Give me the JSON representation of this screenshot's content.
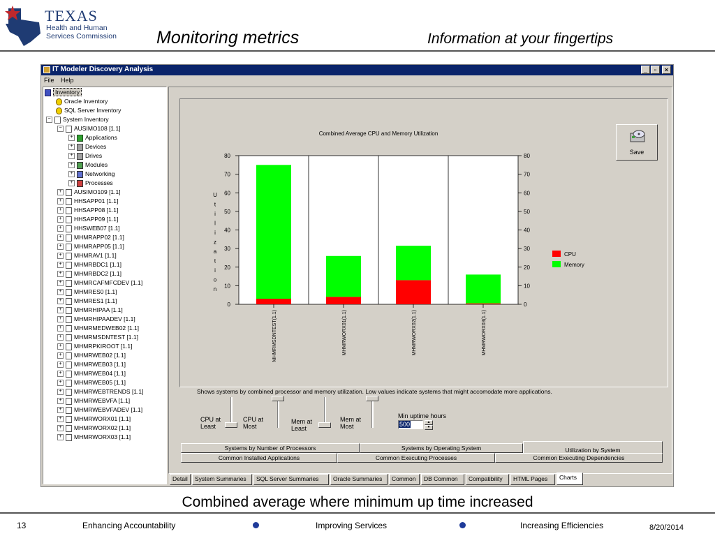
{
  "slide": {
    "title": "Monitoring metrics",
    "tagline": "Information at your fingertips",
    "logo": {
      "state": "TEXAS",
      "agency_line1": "Health and Human",
      "agency_line2": "Services Commission"
    },
    "caption": "Combined average where minimum up time increased",
    "footer": {
      "page": "13",
      "item1": "Enhancing Accountability",
      "item2": "Improving Services",
      "item3": "Increasing Efficiencies",
      "date": "8/20/2014"
    }
  },
  "window": {
    "title": "IT Modeler Discovery Analysis",
    "menu": [
      "File",
      "Help"
    ]
  },
  "tree": {
    "root": "Inventory",
    "oracle": "Oracle Inventory",
    "sqlserver": "SQL Server Inventory",
    "system": "System Inventory",
    "expanded_system": "AUSIMO108 [1.1]",
    "expanded_children": [
      "Applications",
      "Devices",
      "Drives",
      "Modules",
      "Networking",
      "Processes"
    ],
    "systems": [
      "AUSIMO109 [1.1]",
      "HHSAPP01 [1.1]",
      "HHSAPP08 [1.1]",
      "HHSAPP09 [1.1]",
      "HHSWEB07 [1.1]",
      "MHMRAPP02 [1.1]",
      "MHMRAPP05 [1.1]",
      "MHMRAV1 [1.1]",
      "MHMRBDC1 [1.1]",
      "MHMRBDC2 [1.1]",
      "MHMRCAFMFCDEV [1.1]",
      "MHMRES0 [1.1]",
      "MHMRES1 [1.1]",
      "MHMRHIPAA [1.1]",
      "MHMRHIPAADEV [1.1]",
      "MHMRMEDWEB02 [1.1]",
      "MHMRMSDNTEST [1.1]",
      "MHMRPKIROOT [1.1]",
      "MHMRWEB02 [1.1]",
      "MHMRWEB03 [1.1]",
      "MHMRWEB04 [1.1]",
      "MHMRWEB05 [1.1]",
      "MHMRWEBTRENDS [1.1]",
      "MHMRWEBVFA [1.1]",
      "MHMRWEBVFADEV [1.1]",
      "MHMRWORX01 [1.1]",
      "MHMRWORX02 [1.1]",
      "MHMRWORX03 [1.1]"
    ]
  },
  "chart_data": {
    "type": "bar",
    "stacked": true,
    "title": "Combined Average CPU and Memory Utilization",
    "ylabel": "Utilization",
    "xlabel": "",
    "ylim": [
      0,
      80
    ],
    "yticks": [
      0,
      10,
      20,
      30,
      40,
      50,
      60,
      70,
      80
    ],
    "categories": [
      "MHMRMSDNTEST(1.1)",
      "MHMRWORX01(1.1)",
      "MHMRWORX02(1.1)",
      "MHMRWORX03(1.1)"
    ],
    "series": [
      {
        "name": "CPU",
        "color": "#ff0000",
        "values": [
          3,
          4,
          13,
          0.5
        ]
      },
      {
        "name": "Memory",
        "color": "#00ff00",
        "values": [
          72,
          22,
          18.5,
          15.5
        ]
      }
    ],
    "grid": true,
    "legend": "right"
  },
  "chart_caption": "Shows systems by combined processor and memory utilization.  Low values indicate systems that might accomodate more applications.",
  "save_label": "Save",
  "sliders": {
    "cpu_least": "CPU at Least",
    "cpu_most": "CPU at Most",
    "mem_least": "Mem at Least",
    "mem_most": "Mem at Most"
  },
  "uptime": {
    "label": "Min uptime hours",
    "value": "500"
  },
  "inner_tabs": {
    "row1": [
      "Systems by Number of Processors",
      "Systems by Operating System",
      "Utilization by System"
    ],
    "row2": [
      "Common Installed Applications",
      "Common Executing Processes",
      "Common Executing Dependencies"
    ]
  },
  "bottom_tabs": [
    "Detail",
    "System Summaries",
    "SQL Server Summaries",
    "Oracle Summaries",
    "Common",
    "DB Common",
    "Compatibility",
    "HTML Pages",
    "Charts"
  ],
  "icons": [
    "texas-logo",
    "app-icon",
    "minimize-icon",
    "maximize-icon",
    "close-icon",
    "save-disk-icon"
  ]
}
